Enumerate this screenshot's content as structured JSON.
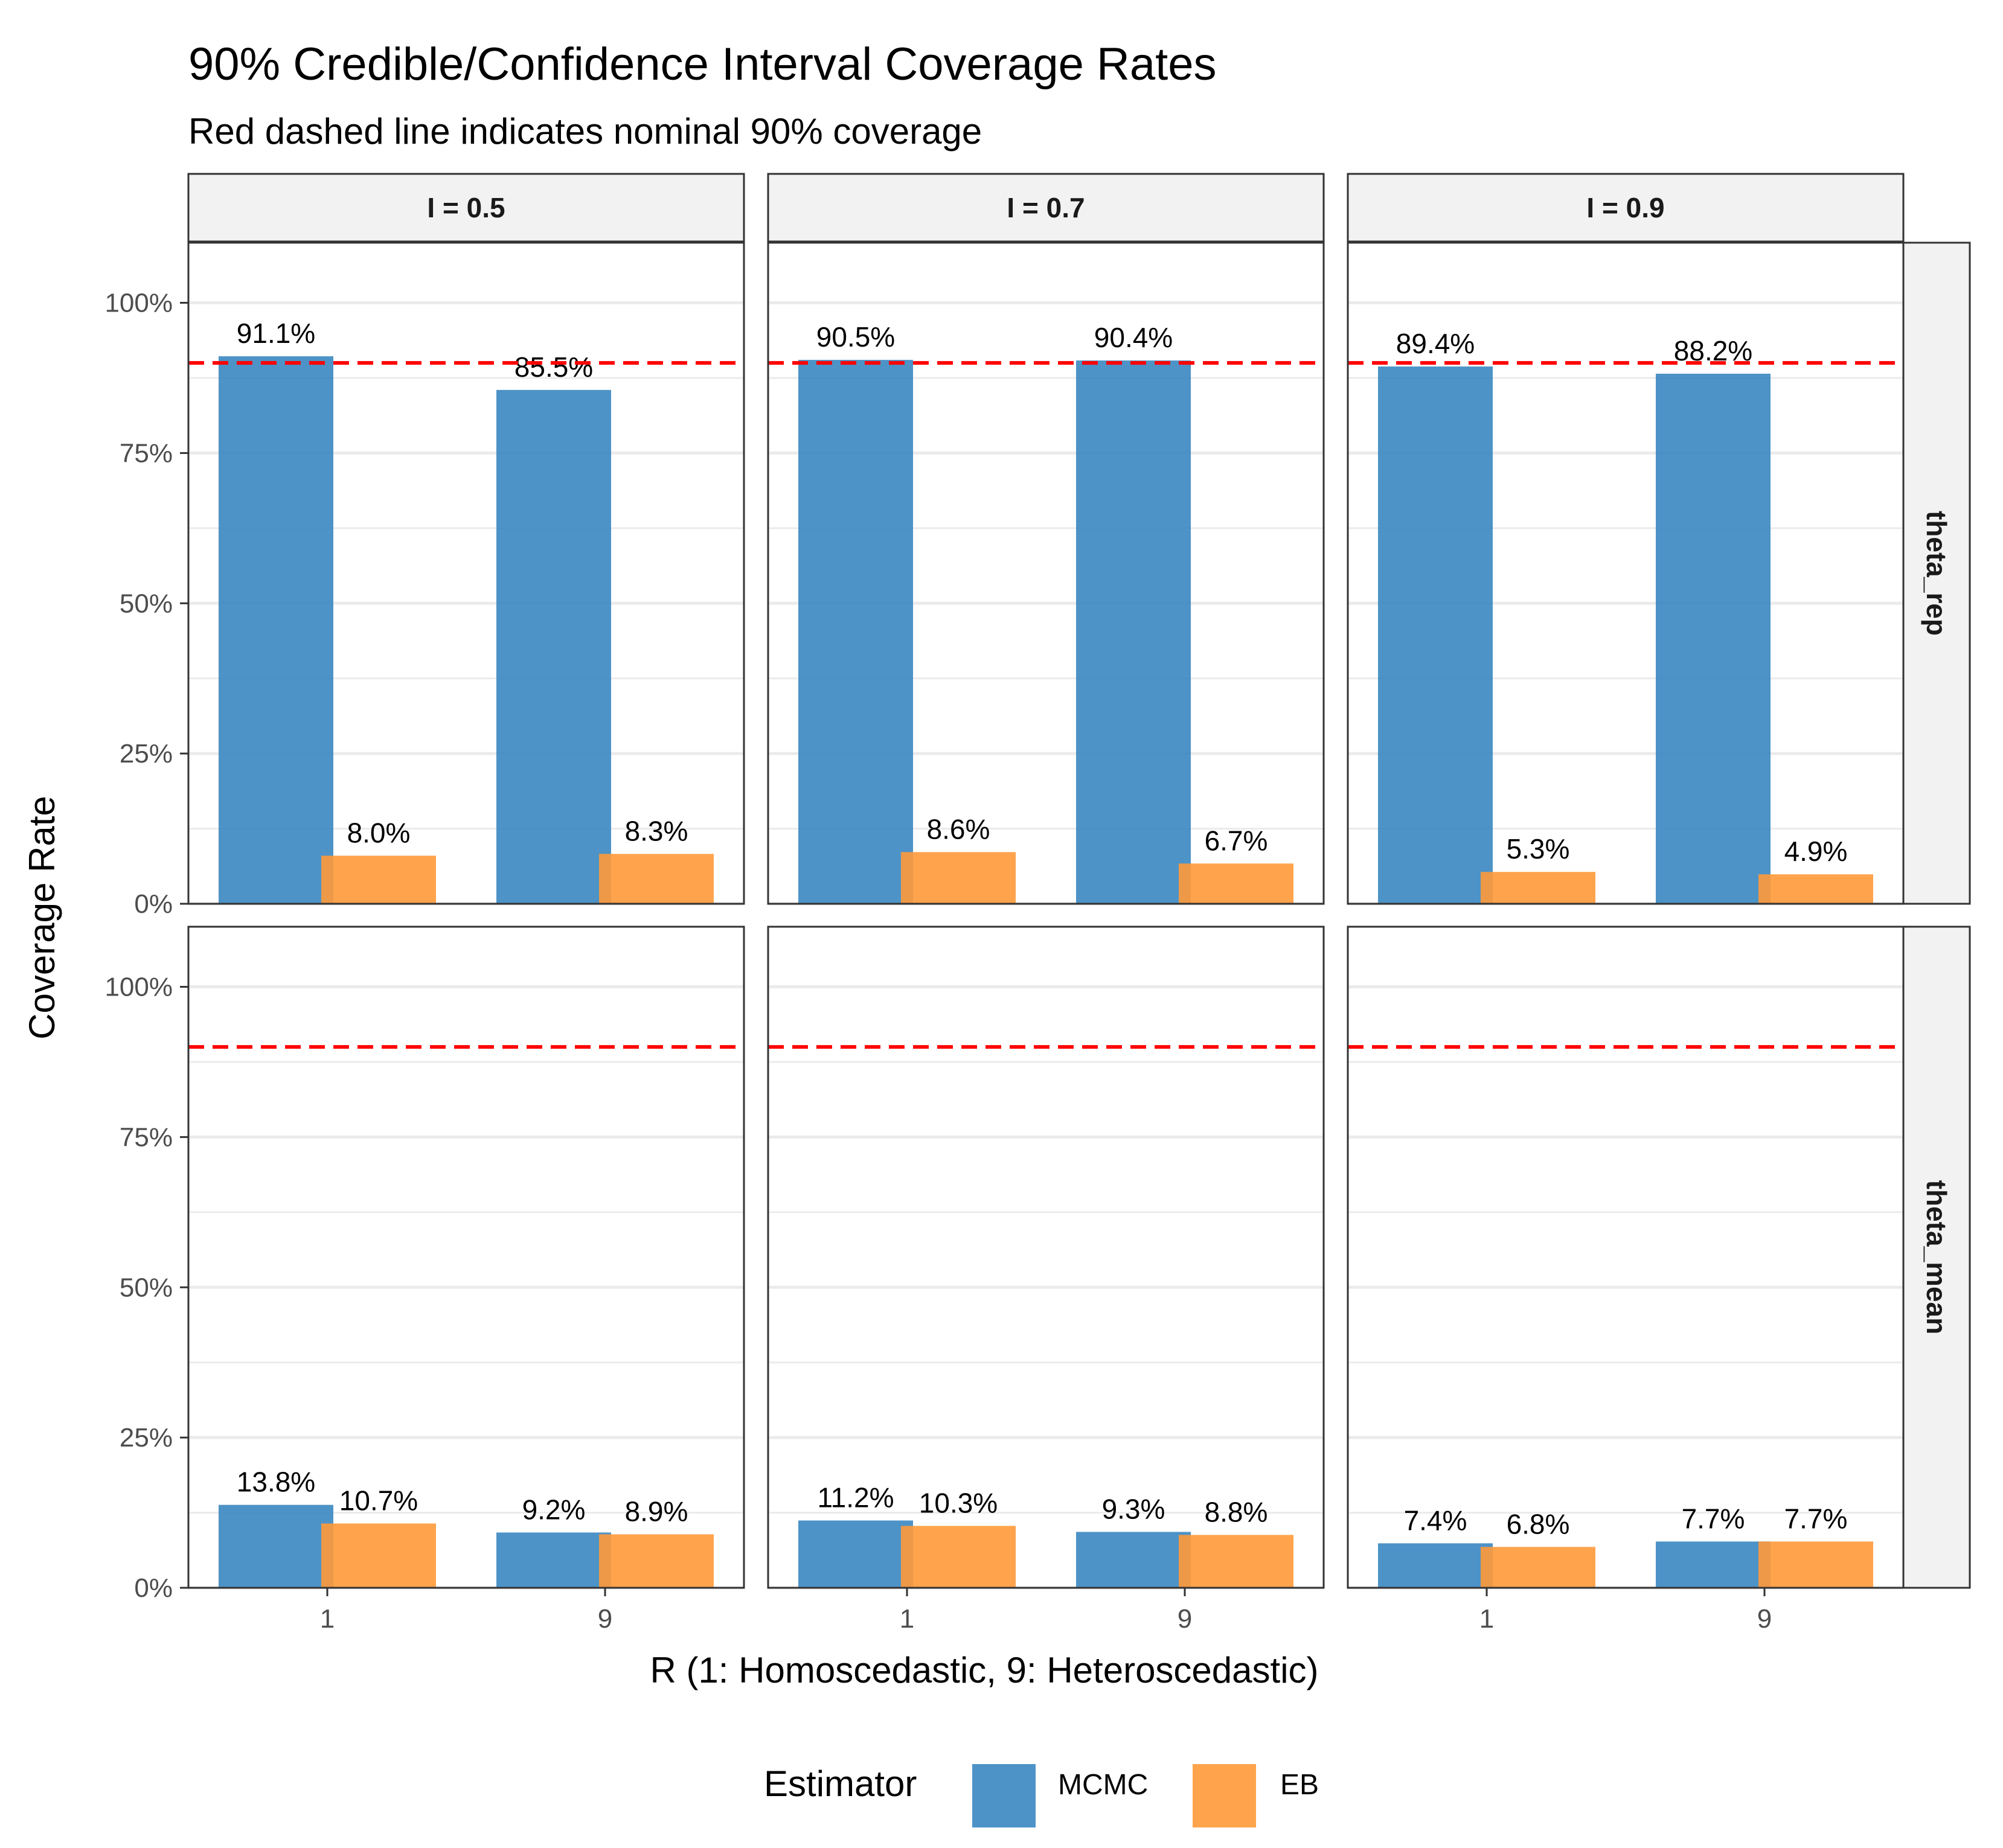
{
  "chart_data": {
    "type": "bar",
    "title": "90% Credible/Confidence Interval Coverage Rates",
    "subtitle": "Red dashed line indicates nominal 90% coverage",
    "xlabel": "R (1: Homoscedastic, 9: Heteroscedastic)",
    "ylabel": "Coverage Rate",
    "ylim": [
      0,
      1.1
    ],
    "y_ticks": [
      0,
      0.25,
      0.5,
      0.75,
      1.0
    ],
    "y_tick_labels": [
      "0%",
      "25%",
      "50%",
      "75%",
      "100%"
    ],
    "categories": [
      "1",
      "9"
    ],
    "reference_line": 0.9,
    "reference_line_color": "#ff0000",
    "facet_columns": [
      "I = 0.5",
      "I = 0.7",
      "I = 0.9"
    ],
    "facet_rows": [
      "theta_rep",
      "theta_mean"
    ],
    "legend": {
      "title": "Estimator",
      "position": "bottom",
      "entries": [
        {
          "name": "MCMC",
          "color": "#3A87C1"
        },
        {
          "name": "EB",
          "color": "#FF9A3A"
        }
      ]
    },
    "panels": [
      {
        "row": "theta_rep",
        "col": "I = 0.5",
        "series": [
          {
            "name": "MCMC",
            "values": [
              0.911,
              0.855
            ],
            "labels": [
              "91.1%",
              "85.5%"
            ]
          },
          {
            "name": "EB",
            "values": [
              0.08,
              0.083
            ],
            "labels": [
              "8.0%",
              "8.3%"
            ]
          }
        ]
      },
      {
        "row": "theta_rep",
        "col": "I = 0.7",
        "series": [
          {
            "name": "MCMC",
            "values": [
              0.905,
              0.904
            ],
            "labels": [
              "90.5%",
              "90.4%"
            ]
          },
          {
            "name": "EB",
            "values": [
              0.086,
              0.067
            ],
            "labels": [
              "8.6%",
              "6.7%"
            ]
          }
        ]
      },
      {
        "row": "theta_rep",
        "col": "I = 0.9",
        "series": [
          {
            "name": "MCMC",
            "values": [
              0.894,
              0.882
            ],
            "labels": [
              "89.4%",
              "88.2%"
            ]
          },
          {
            "name": "EB",
            "values": [
              0.053,
              0.049
            ],
            "labels": [
              "5.3%",
              "4.9%"
            ]
          }
        ]
      },
      {
        "row": "theta_mean",
        "col": "I = 0.5",
        "series": [
          {
            "name": "MCMC",
            "values": [
              0.138,
              0.092
            ],
            "labels": [
              "13.8%",
              "9.2%"
            ]
          },
          {
            "name": "EB",
            "values": [
              0.107,
              0.089
            ],
            "labels": [
              "10.7%",
              "8.9%"
            ]
          }
        ]
      },
      {
        "row": "theta_mean",
        "col": "I = 0.7",
        "series": [
          {
            "name": "MCMC",
            "values": [
              0.112,
              0.093
            ],
            "labels": [
              "11.2%",
              "9.3%"
            ]
          },
          {
            "name": "EB",
            "values": [
              0.103,
              0.088
            ],
            "labels": [
              "10.3%",
              "8.8%"
            ]
          }
        ]
      },
      {
        "row": "theta_mean",
        "col": "I = 0.9",
        "series": [
          {
            "name": "MCMC",
            "values": [
              0.074,
              0.077
            ],
            "labels": [
              "7.4%",
              "7.7%"
            ]
          },
          {
            "name": "EB",
            "values": [
              0.068,
              0.077
            ],
            "labels": [
              "6.8%",
              "7.7%"
            ]
          }
        ]
      }
    ]
  }
}
